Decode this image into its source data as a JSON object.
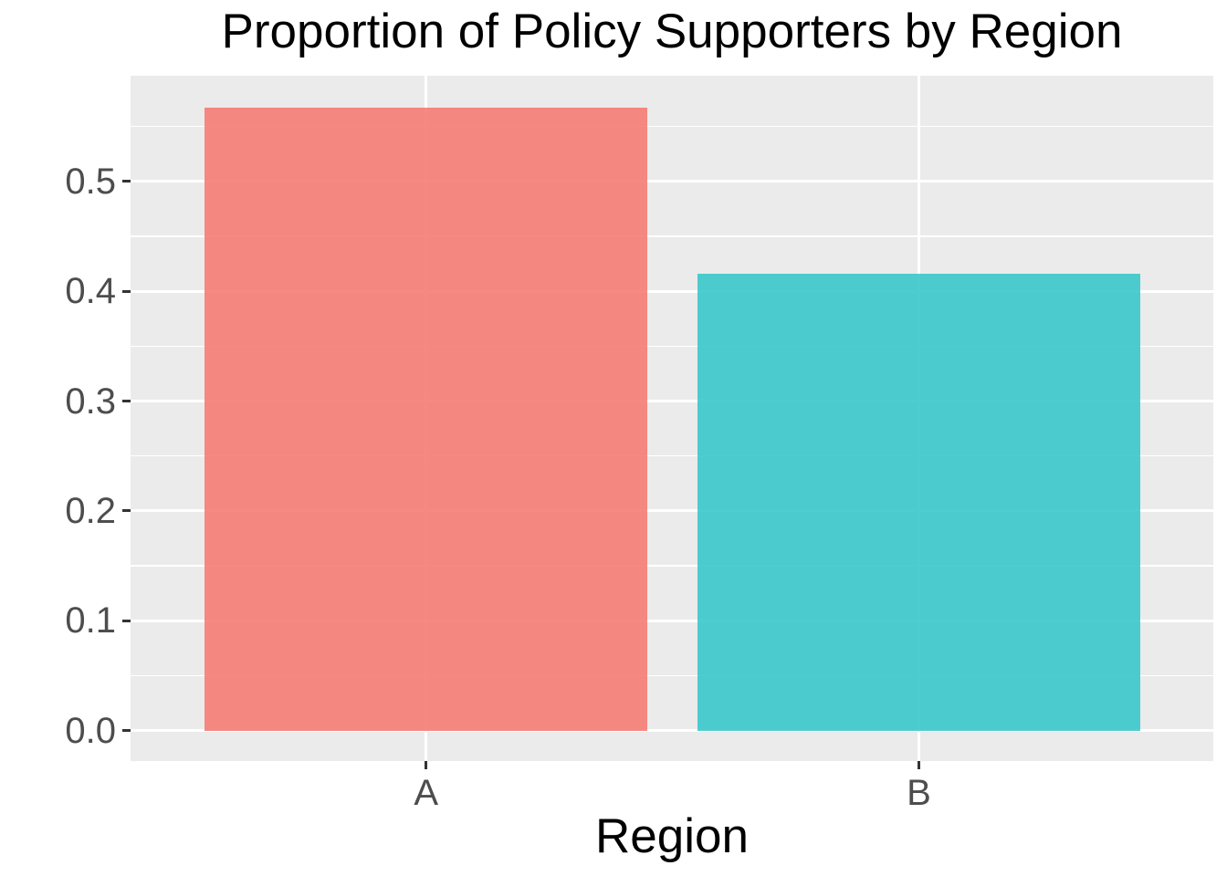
{
  "chart_data": {
    "type": "bar",
    "title": "Proportion of Policy Supporters by Region",
    "xlabel": "Region",
    "ylabel": "",
    "categories": [
      "A",
      "B"
    ],
    "values": [
      0.567,
      0.416
    ],
    "fill_colors": [
      "#F5796F",
      "#35C6C9"
    ],
    "bar_alpha": 0.88,
    "observed_bar_colors": [
      "#F2867E",
      "#54C4C6"
    ],
    "ylim": [
      -0.0278,
      0.5963
    ],
    "yticks": [
      0.0,
      0.1,
      0.2,
      0.3,
      0.4,
      0.5
    ],
    "ytick_labels": [
      "0.0",
      "0.1",
      "0.2",
      "0.3",
      "0.4",
      "0.5"
    ],
    "minor_yticks": [
      0.05,
      0.15,
      0.25,
      0.35,
      0.45,
      0.55
    ],
    "grid": true,
    "legend": "none",
    "panel_bg": "#EBEBEB",
    "grid_color": "#FFFFFF",
    "axis_text_color": "#4D4D4D",
    "axis_title_color": "#000000",
    "title_color": "#000000",
    "tick_mark_color": "#333333"
  }
}
